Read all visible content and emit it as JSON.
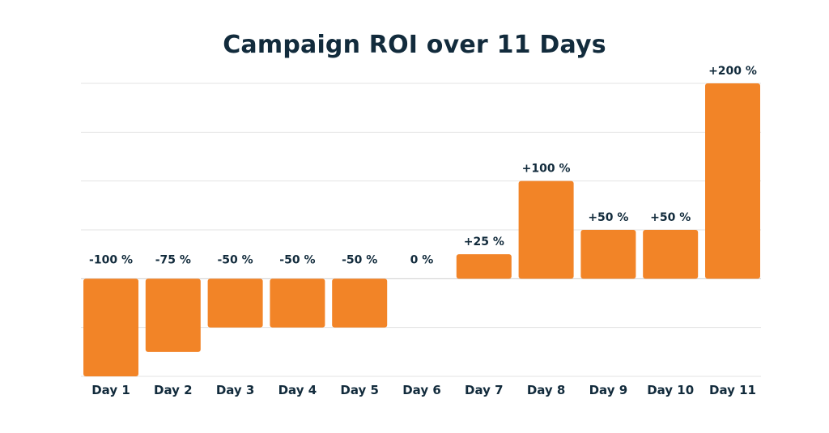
{
  "chart_data": {
    "type": "bar",
    "title": "Campaign ROI over 11 Days",
    "xlabel": "",
    "ylabel": "",
    "categories": [
      "Day 1",
      "Day 2",
      "Day 3",
      "Day 4",
      "Day 5",
      "Day 6",
      "Day 7",
      "Day 8",
      "Day 9",
      "Day 10",
      "Day 11"
    ],
    "values": [
      -100,
      -75,
      -50,
      -50,
      -50,
      0,
      25,
      100,
      50,
      50,
      200
    ],
    "value_labels": [
      "-100 %",
      "-75 %",
      "-50 %",
      "-50 %",
      "-50 %",
      "0 %",
      "+25 %",
      "+100 %",
      "+50 %",
      "+50 %",
      "+200 %"
    ],
    "ylim": [
      -100,
      200
    ],
    "grid": true,
    "gridline_values": [
      -100,
      -50,
      0,
      50,
      100,
      150,
      200
    ],
    "legend": "none"
  },
  "colors": {
    "bar": "#f28427",
    "text": "#122b3c",
    "grid": "#e3e3e3",
    "zero_line": "#cfcfcf"
  }
}
